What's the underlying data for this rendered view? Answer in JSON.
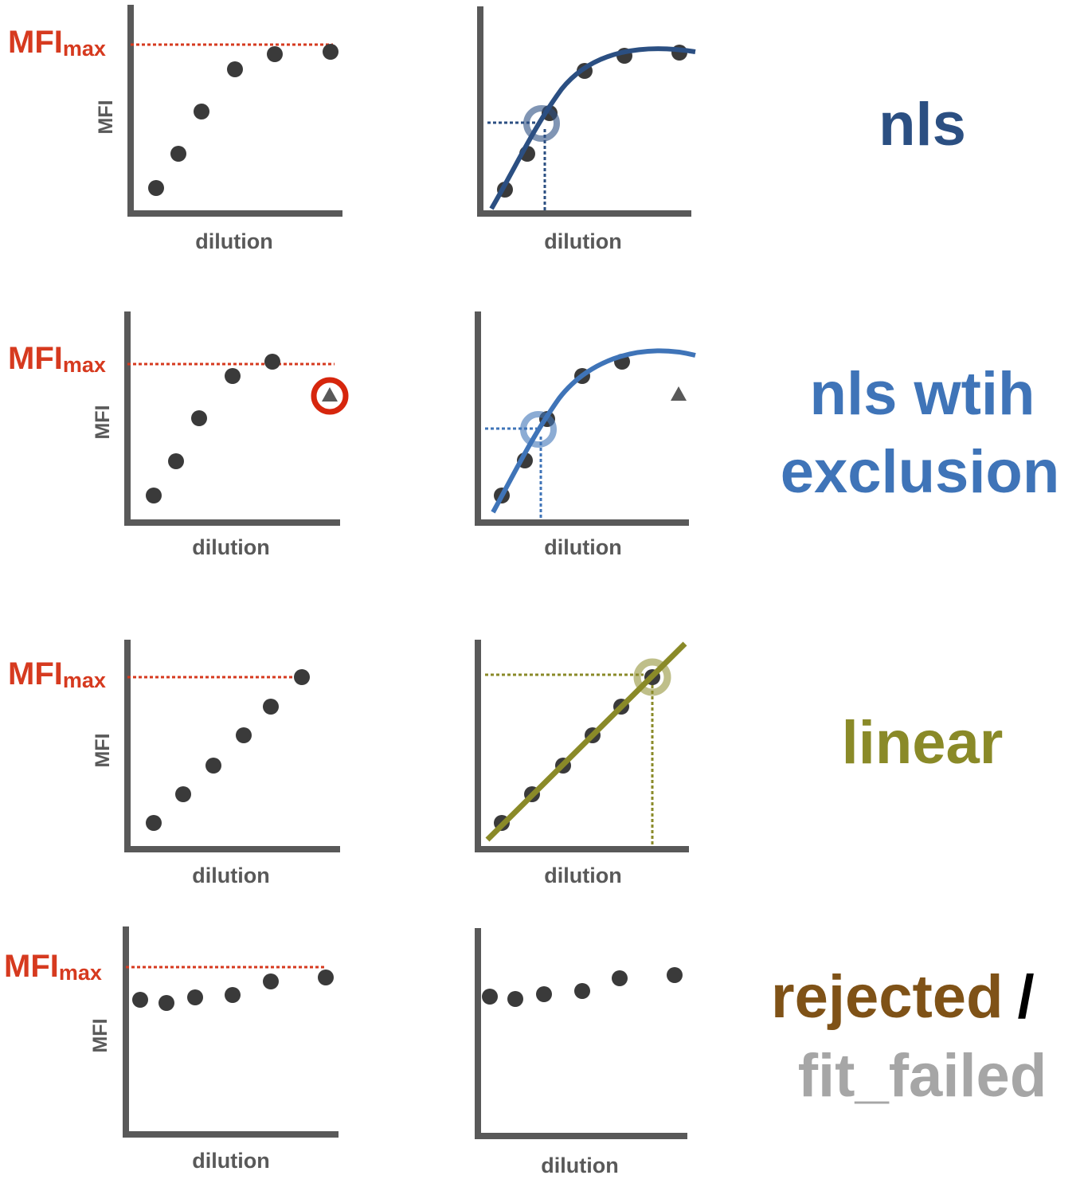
{
  "labels": {
    "x_axis": "dilution",
    "y_axis": "MFI",
    "mfi_max_main": "MFI",
    "mfi_max_sub": "max"
  },
  "colors": {
    "axis": "#595959",
    "point": "#3a3a3a",
    "mfi_max": "#d63a1f",
    "nls": "#2b4f82",
    "nls_exclusion": "#3f74b8",
    "linear": "#8a8a28",
    "rejected": "#7f5217",
    "fit_failed": "#a6a6a6",
    "separator": "#000000"
  },
  "rows": [
    {
      "id": "nls",
      "method_label": [
        "nls"
      ],
      "excluded_point_marker": "triangle-icon",
      "fit_type": "sigmoid"
    },
    {
      "id": "nls-with-exclusion",
      "method_label": [
        "nls wtih",
        "exclusion"
      ],
      "excluded_point_marker": "triangle-icon",
      "fit_type": "sigmoid"
    },
    {
      "id": "linear",
      "method_label": [
        "linear"
      ],
      "fit_type": "line"
    },
    {
      "id": "rejected-fit-failed",
      "method_label_parts": [
        "rejected",
        "/",
        "fit_failed"
      ],
      "fit_type": "none"
    }
  ]
}
